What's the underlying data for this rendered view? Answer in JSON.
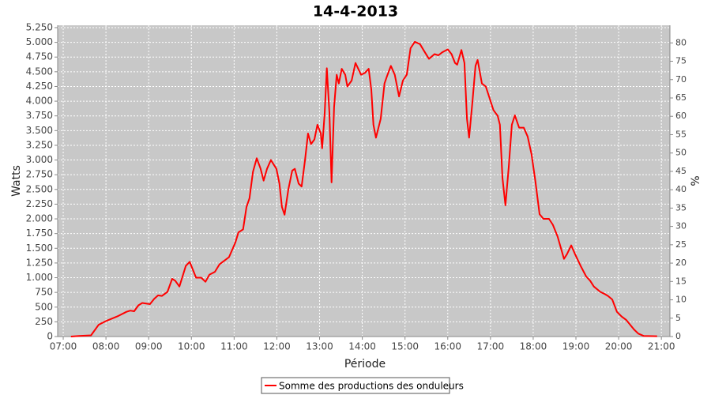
{
  "chart_data": {
    "type": "line",
    "title": "14-4-2013",
    "x_label": "Période",
    "y_label": "Watts",
    "y2_label": "%",
    "x": [
      7.18,
      7.37,
      7.65,
      7.83,
      8.02,
      8.29,
      8.48,
      8.57,
      8.66,
      8.76,
      8.85,
      9.03,
      9.13,
      9.22,
      9.31,
      9.44,
      9.55,
      9.62,
      9.72,
      9.87,
      9.96,
      10.11,
      10.23,
      10.33,
      10.42,
      10.55,
      10.66,
      10.79,
      10.88,
      11.03,
      11.1,
      11.21,
      11.29,
      11.36,
      11.44,
      11.53,
      11.62,
      11.69,
      11.77,
      11.86,
      11.99,
      12.06,
      12.12,
      12.18,
      12.27,
      12.36,
      12.42,
      12.51,
      12.58,
      12.66,
      12.73,
      12.8,
      12.88,
      12.95,
      13.03,
      13.06,
      13.12,
      13.17,
      13.23,
      13.28,
      13.34,
      13.4,
      13.45,
      13.52,
      13.6,
      13.65,
      13.75,
      13.84,
      13.97,
      14.06,
      14.15,
      14.21,
      14.26,
      14.32,
      14.43,
      14.52,
      14.58,
      14.67,
      14.76,
      14.86,
      14.95,
      15.04,
      15.13,
      15.23,
      15.35,
      15.45,
      15.56,
      15.69,
      15.78,
      15.87,
      16.0,
      16.09,
      16.17,
      16.22,
      16.32,
      16.39,
      16.45,
      16.5,
      16.58,
      16.65,
      16.7,
      16.8,
      16.89,
      16.98,
      17.07,
      17.17,
      17.22,
      17.28,
      17.35,
      17.43,
      17.5,
      17.57,
      17.67,
      17.78,
      17.87,
      17.96,
      18.05,
      18.15,
      18.24,
      18.37,
      18.46,
      18.57,
      18.65,
      18.72,
      18.79,
      18.89,
      18.98,
      19.11,
      19.24,
      19.33,
      19.42,
      19.57,
      19.68,
      19.75,
      19.85,
      19.96,
      20.07,
      20.18,
      20.27,
      20.36,
      20.46,
      20.59,
      20.9
    ],
    "series": [
      {
        "name": "Somme des productions des onduleurs",
        "color": "#ff0000",
        "values": [
          0,
          10,
          20,
          200,
          270,
          350,
          420,
          440,
          430,
          530,
          570,
          550,
          640,
          700,
          690,
          760,
          980,
          950,
          850,
          1200,
          1270,
          1000,
          1000,
          930,
          1050,
          1100,
          1230,
          1300,
          1350,
          1600,
          1770,
          1820,
          2200,
          2350,
          2800,
          3030,
          2850,
          2650,
          2850,
          3000,
          2850,
          2600,
          2200,
          2070,
          2500,
          2820,
          2850,
          2600,
          2550,
          3000,
          3450,
          3270,
          3350,
          3600,
          3450,
          3200,
          3800,
          4560,
          3800,
          2620,
          3900,
          4450,
          4300,
          4550,
          4450,
          4250,
          4350,
          4650,
          4450,
          4480,
          4550,
          4200,
          3600,
          3380,
          3700,
          4300,
          4430,
          4600,
          4450,
          4080,
          4350,
          4450,
          4900,
          5010,
          4970,
          4850,
          4720,
          4800,
          4780,
          4830,
          4880,
          4800,
          4650,
          4620,
          4870,
          4650,
          3700,
          3380,
          4000,
          4600,
          4700,
          4300,
          4250,
          4050,
          3850,
          3750,
          3600,
          2700,
          2230,
          2900,
          3600,
          3760,
          3550,
          3550,
          3400,
          3100,
          2650,
          2080,
          2000,
          2000,
          1900,
          1700,
          1500,
          1320,
          1400,
          1550,
          1400,
          1200,
          1020,
          950,
          850,
          760,
          720,
          690,
          630,
          420,
          340,
          280,
          200,
          120,
          50,
          10,
          5
        ]
      }
    ],
    "xlim": [
      6.87,
      21.2
    ],
    "xticks": [
      {
        "value": 7,
        "label": "07:00"
      },
      {
        "value": 8,
        "label": "08:00"
      },
      {
        "value": 9,
        "label": "09:00"
      },
      {
        "value": 10,
        "label": "10:00"
      },
      {
        "value": 11,
        "label": "11:00"
      },
      {
        "value": 12,
        "label": "12:00"
      },
      {
        "value": 13,
        "label": "13:00"
      },
      {
        "value": 14,
        "label": "14:00"
      },
      {
        "value": 15,
        "label": "15:00"
      },
      {
        "value": 16,
        "label": "16:00"
      },
      {
        "value": 17,
        "label": "17:00"
      },
      {
        "value": 18,
        "label": "18:00"
      },
      {
        "value": 19,
        "label": "19:00"
      },
      {
        "value": 20,
        "label": "20:00"
      },
      {
        "value": 21,
        "label": "21:00"
      }
    ],
    "ylim": [
      0,
      5290
    ],
    "yticks": [
      0,
      250,
      500,
      750,
      {
        "value": 1000,
        "label": "1.000"
      },
      {
        "value": 1250,
        "label": "1.250"
      },
      {
        "value": 1500,
        "label": "1.500"
      },
      {
        "value": 1750,
        "label": "1.750"
      },
      {
        "value": 2000,
        "label": "2.000"
      },
      {
        "value": 2250,
        "label": "2.250"
      },
      {
        "value": 2500,
        "label": "2.500"
      },
      {
        "value": 2750,
        "label": "2.750"
      },
      {
        "value": 3000,
        "label": "3.000"
      },
      {
        "value": 3250,
        "label": "3.250"
      },
      {
        "value": 3500,
        "label": "3.500"
      },
      {
        "value": 3750,
        "label": "3.750"
      },
      {
        "value": 4000,
        "label": "4.000"
      },
      {
        "value": 4250,
        "label": "4.250"
      },
      {
        "value": 4500,
        "label": "4.500"
      },
      {
        "value": 4750,
        "label": "4.750"
      },
      {
        "value": 5000,
        "label": "5.000"
      },
      {
        "value": 5250,
        "label": "5.250"
      }
    ],
    "y2lim": [
      0,
      84.8
    ],
    "y2ticks": [
      0,
      5,
      10,
      15,
      20,
      25,
      30,
      35,
      40,
      45,
      50,
      55,
      60,
      65,
      70,
      75,
      80
    ],
    "grid": true,
    "legend": "bottom"
  }
}
